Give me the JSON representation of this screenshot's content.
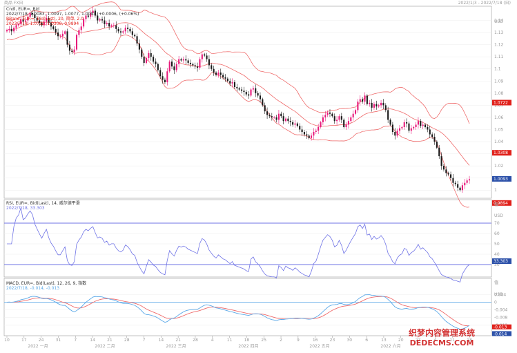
{
  "colors": {
    "up": "#e8197a",
    "down": "#1a1a1a",
    "bands": "#ef6a6a",
    "rsi": "#6f73e6",
    "rsi_levels": "#6f73e6",
    "macd": "#5aa8e8",
    "signal": "#ef6a6a",
    "highlight_red": "#e0201a",
    "highlight_blue": "#2a4fa8",
    "grid": "#ececec",
    "frame": "#9a9a9a"
  },
  "header": {
    "top_left": "商品  FX日",
    "top_right": "2022/1/3 - 2022/7/18 (日)"
  },
  "price_panel": {
    "title": "Cndl, EUR=, Bid",
    "ohlc": "2022/7/18, 1.0083, 1.0097, 1.0077, 1.0093, +0.0006, (+0.06%)",
    "bb_title": "BBand, EUR=, Bid(Last), 20, 简单, 2.0",
    "bb_values": "2022/7/18, 1.0722, 1.0308, 0.9894",
    "currency": "USD",
    "ticks": [
      "1.14",
      "1.13",
      "1.12",
      "1.11",
      "1.1",
      "1.09",
      "1.08",
      "1.07",
      "1.06",
      "1.05",
      "1.04",
      "1.03",
      "1.02",
      "1.01",
      "1"
    ],
    "tags": [
      {
        "text": "1.0722",
        "kind": "red",
        "value": 1.0722
      },
      {
        "text": "1.0308",
        "kind": "red",
        "value": 1.0308
      },
      {
        "text": "1.0093",
        "kind": "blue",
        "value": 1.0093
      },
      {
        "text": "0.9894",
        "kind": "red",
        "value": 0.9894
      }
    ]
  },
  "rsi_panel": {
    "title": "RSI, EUR=, Bid(Last), 14, 威尔德平滑",
    "values_text": "2022/7/18, 33.303",
    "unit_label": "值",
    "currency": "USD",
    "ticks": [
      "70",
      "60",
      "50",
      "40",
      "30"
    ],
    "levels": [
      70,
      30
    ],
    "tag_text": "33.303"
  },
  "macd_panel": {
    "title": "MACD, EUR=, Bid(Last), 12, 26, 9, 指数",
    "values_text": "2022/7/18, -0.014, -0.013",
    "unit_label": "值",
    "currency": "USD",
    "ticks": [
      "0.004",
      "0",
      "-0.004",
      "-0.008",
      "-0.012"
    ],
    "tags": [
      "-0.013",
      "-0.014"
    ]
  },
  "x_axis": {
    "days": [
      "10",
      "17",
      "24",
      "31",
      "7",
      "14",
      "21",
      "28",
      "7",
      "14",
      "21",
      "28",
      "4",
      "11",
      "18",
      "25",
      "2",
      "9",
      "16",
      "23",
      "30",
      "6",
      "13",
      "20",
      "27",
      "4",
      "11",
      "18"
    ],
    "months": [
      "2022 一月",
      "2022 二月",
      "2022 三月",
      "2022 四月",
      "2022 五月",
      "2022 六月"
    ]
  },
  "watermark": {
    "line1": "织梦内容管理系统",
    "line2": "DEDECMS.COM"
  },
  "chart_data": {
    "type": "candlestick",
    "instrument": "EUR=",
    "title": "Cndl, EUR=, Bid",
    "ylim": [
      0.995,
      1.15
    ],
    "last": {
      "date": "2022/7/18",
      "open": 1.0083,
      "high": 1.0097,
      "low": 1.0077,
      "close": 1.0093,
      "change": 0.0006,
      "change_pct": 0.06
    },
    "close": [
      1.132,
      1.133,
      1.131,
      1.134,
      1.136,
      1.137,
      1.141,
      1.139,
      1.14,
      1.143,
      1.146,
      1.145,
      1.142,
      1.14,
      1.138,
      1.136,
      1.139,
      1.142,
      1.138,
      1.135,
      1.133,
      1.13,
      1.127,
      1.127,
      1.129,
      1.131,
      1.12,
      1.115,
      1.114,
      1.116,
      1.128,
      1.132,
      1.135,
      1.141,
      1.144,
      1.143,
      1.146,
      1.148,
      1.144,
      1.14,
      1.141,
      1.14,
      1.137,
      1.138,
      1.135,
      1.136,
      1.136,
      1.133,
      1.131,
      1.13,
      1.131,
      1.134,
      1.133,
      1.131,
      1.128,
      1.127,
      1.121,
      1.116,
      1.11,
      1.105,
      1.109,
      1.113,
      1.11,
      1.106,
      1.104,
      1.099,
      1.094,
      1.091,
      1.089,
      1.098,
      1.106,
      1.102,
      1.099,
      1.104,
      1.108,
      1.107,
      1.108,
      1.107,
      1.105,
      1.104,
      1.103,
      1.102,
      1.101,
      1.108,
      1.112,
      1.111,
      1.108,
      1.103,
      1.1,
      1.097,
      1.095,
      1.097,
      1.095,
      1.093,
      1.092,
      1.09,
      1.088,
      1.089,
      1.085,
      1.084,
      1.083,
      1.082,
      1.081,
      1.079,
      1.078,
      1.083,
      1.084,
      1.08,
      1.078,
      1.075,
      1.07,
      1.065,
      1.062,
      1.061,
      1.06,
      1.06,
      1.058,
      1.063,
      1.061,
      1.057,
      1.059,
      1.057,
      1.056,
      1.054,
      1.055,
      1.053,
      1.05,
      1.048,
      1.046,
      1.045,
      1.043,
      1.045,
      1.048,
      1.049,
      1.052,
      1.056,
      1.06,
      1.062,
      1.064,
      1.063,
      1.061,
      1.057,
      1.058,
      1.061,
      1.058,
      1.052,
      1.054,
      1.057,
      1.06,
      1.063,
      1.066,
      1.073,
      1.075,
      1.073,
      1.078,
      1.071,
      1.072,
      1.068,
      1.071,
      1.069,
      1.07,
      1.072,
      1.07,
      1.066,
      1.058,
      1.054,
      1.048,
      1.045,
      1.049,
      1.051,
      1.052,
      1.056,
      1.055,
      1.049,
      1.051,
      1.052,
      1.054,
      1.057,
      1.053,
      1.054,
      1.052,
      1.05,
      1.046,
      1.044,
      1.04,
      1.035,
      1.028,
      1.02,
      1.017,
      1.014,
      1.013,
      1.01,
      1.006,
      1.005,
      1.002,
      1.0,
      1.004,
      1.006,
      1.008,
      1.009
    ],
    "rsi": {
      "levels": [
        70,
        30
      ],
      "last": 33.303
    },
    "macd": {
      "fast": 12,
      "slow": 26,
      "signal": 9,
      "last_macd": -0.014,
      "last_signal": -0.013
    }
  }
}
